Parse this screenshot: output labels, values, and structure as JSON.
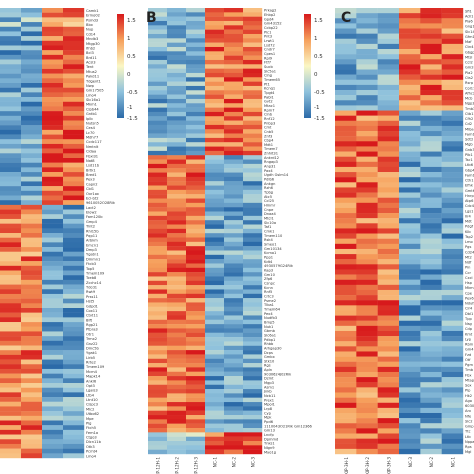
{
  "chart_data": [
    {
      "type": "heatmap",
      "panel_label": "",
      "columns": [
        "",
        "",
        "",
        ""
      ],
      "gene_labels": [
        "Camk1",
        "Ermo02",
        "Psmd3",
        "Bbx",
        "Nup",
        "Cd14",
        "Mndb3",
        "Mtgp30",
        "Ifnb2",
        "Bcl3",
        "Brd11",
        "Acsl3",
        "Tent",
        "Mtus2",
        "Pakd11",
        "Tdgent1",
        "Nwp",
        "Gm17505",
        "Lmo4",
        "Slc16a1",
        "Mkm1",
        "Clpb44",
        "Gntb1",
        "Iplb",
        "Nutsn5",
        "Ces4",
        "Lc70",
        "Mdh77",
        "Ccdc117",
        "Nmtnlt",
        "Cldaa",
        "Fbxl31",
        "Nat8",
        "Lsd11b",
        "Brtk1",
        "Bred1",
        "Pex3",
        "Capn2",
        "Cbl1",
        "Oxr1ox",
        "Ecl-bt2",
        "9610052O28Rik",
        "Lact2",
        "Elow2",
        "Fam120b",
        "Gmp4",
        "Trnt2",
        "Rhl15b",
        "Pqp11",
        "Arbkm",
        "Emcn1",
        "Dmp3",
        "Ygatn1",
        "Dmmn1",
        "Ftcb3",
        "Top5",
        "Tmem109",
        "Tceb8",
        "Zcchc14",
        "Tdcd1",
        "Rwt9",
        "Prss11",
        "Hst5",
        "Gdpd1",
        "Cox11",
        "Ctvt11",
        "Blft",
        "Rgp21",
        "Pfpra3",
        "Otr1",
        "Trmx2",
        "Gnz22",
        "Dmc5b",
        "Ygak1",
        "Lirb5",
        "Rrte2",
        "Tmem109",
        "Mcm4",
        "Mapk14",
        "Ankl6",
        "Opt3",
        "Lgals3",
        "Ltb4",
        "Ltnt10",
        "Clspc3",
        "Mlc2",
        "Utbo62",
        "Mpe",
        "Plg",
        "Ftch5",
        "Fem1a",
        "Ctgo3",
        "Dlcn11b",
        "Otk3",
        "Pcmt4",
        "Lmo4"
      ]
    },
    {
      "type": "heatmap",
      "panel_label": "B",
      "columns": [
        "KIP-12H-1",
        "KIP-12H-2",
        "KIP-12H-3",
        "NC-1",
        "NC-2",
        "NC-3"
      ],
      "gene_labels": [
        "Prkag2",
        "Ehbp2",
        "Gpd4",
        "Gm43152",
        "Ccbp22",
        "Plc1",
        "Pnt3",
        "Lrwt1",
        "Lsd72",
        "Cndr7",
        "Cpes1",
        "Rpl9",
        "Ftf7",
        "Sucb",
        "Slc5a1",
        "Clng",
        "Tmem65",
        "Pt1",
        "Kcnq1",
        "Tpgt4",
        "Pabl1",
        "Gvt2",
        "Mtac1",
        "Rpm7",
        "Clnb",
        "Rnf12",
        "Pnbp3",
        "Cmt",
        "Cnb5",
        "Znf3",
        "Cbp4",
        "Mdt1",
        "Tmem7",
        "Znhit31",
        "Ankrd12",
        "Rngap3",
        "Anp31",
        "Pax4",
        "Ugdh Gslm14",
        "Pdlb6",
        "Ankgn",
        "Rzh6",
        "Tpbg",
        "Atc5",
        "Ccl25",
        "Hmmr",
        "Cnpe",
        "Dnaa4",
        "Mtcl1",
        "Slc10a",
        "Taf1",
        "Cmk1",
        "Tmem110",
        "Rsk4",
        "Smeo1",
        "Gm10134",
        "Kcmo1",
        "Ppp1",
        "Kdt4",
        "4930579G24Rik",
        "Kap3",
        "Gm10",
        "Zfp6",
        "Csnpc",
        "Kcnn",
        "Rnf5",
        "Crtc3",
        "Psme2",
        "Tlba1",
        "Tmem64",
        "Pex4",
        "Nudfb3",
        "Bmp5",
        "Nuk1",
        "Gbmb",
        "Slc6a1",
        "Pdbp1",
        "Rhbb",
        "Arhgap30",
        "Dcps",
        "Gmbx",
        "Stk10",
        "Rgs",
        "Apln",
        "9030624J02Rik",
        "Dzmt",
        "Mgp3",
        "Asm1",
        "Jnkb",
        "Ncb11",
        "Prex1",
        "Mpol1",
        "Lrp8",
        "Cyp",
        "Mpk",
        "Ppd6",
        "1110043O21Rik Gm12366",
        "Gm13",
        "Lncfp",
        "Dpmmd",
        "Tnks1",
        "Nlgn9",
        "Myo1g"
      ]
    },
    {
      "type": "heatmap",
      "panel_label": "C",
      "columns": [
        "KIP-3H-1",
        "KIP-3H-2",
        "KIP-3H-3",
        "NC-3",
        "NC-2",
        "NC-1"
      ],
      "gene_labels": [
        "Sfl1",
        "Adr1",
        "Pla6",
        "Gng15",
        "Slc14",
        "Gfm1",
        "Maf",
        "Ctn4",
        "Gbgp1",
        "Mtsl",
        "Ccl2",
        "Gm20",
        "Pla2",
        "Cts2",
        "Rsrp",
        "Col17",
        "Afhc2",
        "Mcb",
        "Ngp3",
        "Tmb3",
        "Ctb11",
        "Cfh2",
        "Cd2",
        "Mlba",
        "Fam1",
        "Sdt2",
        "Mgb",
        "Gnb3",
        "Plb1",
        "Tsc1",
        "Ltb6",
        "Gbp4",
        "Fam1",
        "Cth1",
        "Efhk",
        "Gmt6",
        "Hnrp",
        "Atp6",
        "Cdc4",
        "Lgs1",
        "Ilr4",
        "Mdt",
        "Pdgf",
        "Klb",
        "Tsp2",
        "Lmo",
        "Pgs",
        "Cd24",
        "Mt2",
        "Ndf",
        "Pin",
        "Ccr",
        "Cxcl",
        "Hsp",
        "Mkm",
        "Cpe",
        "Pex6",
        "Ndufs",
        "Clr4",
        "Dbl1",
        "Tpp",
        "Nsg",
        "Cdp",
        "Kmt",
        "Lyp",
        "Rbm",
        "Gm4",
        "Fzd",
        "Otf",
        "Pgm",
        "Tmb",
        "Fbx",
        "Mtap",
        "Sox",
        "Plp",
        "Hk2",
        "Ago",
        "6030",
        "Arx",
        "Nfe",
        "Slc2",
        "Gmp",
        "Ttc",
        "Ltb",
        "Nppa",
        "Rps",
        "Mgl"
      ]
    }
  ]
}
